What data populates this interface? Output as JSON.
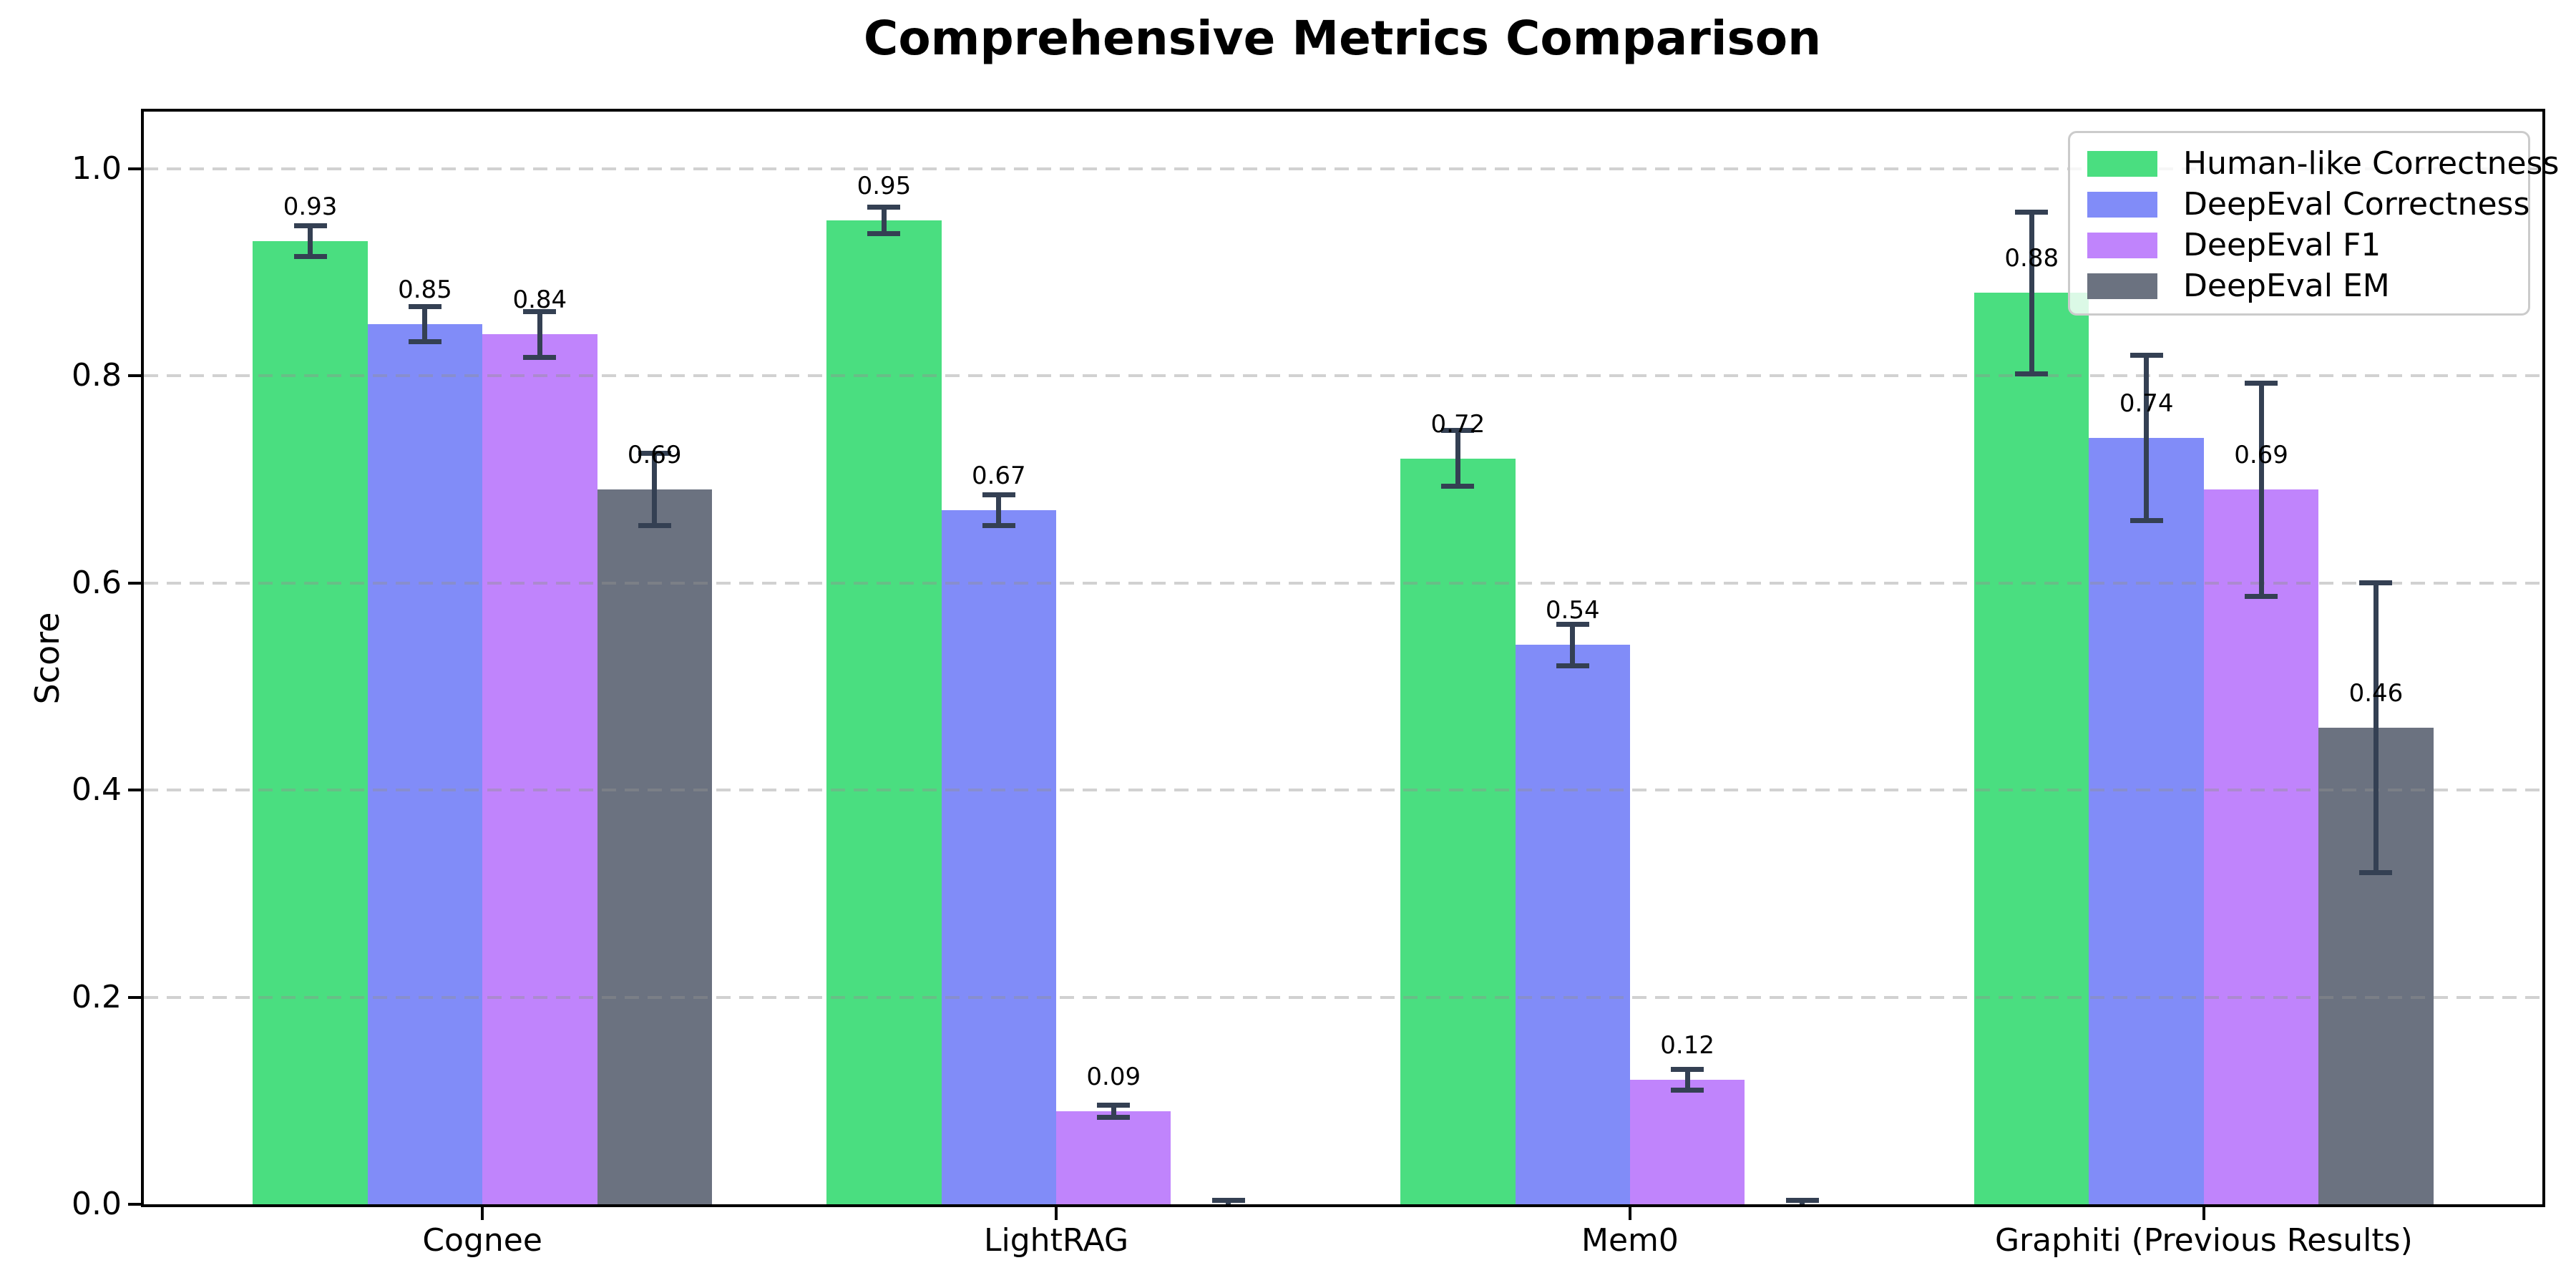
{
  "chart_data": {
    "type": "bar",
    "title": "Comprehensive Metrics Comparison",
    "xlabel": "",
    "ylabel": "Score",
    "categories": [
      "Cognee",
      "LightRAG",
      "Mem0",
      "Graphiti (Previous Results)"
    ],
    "series": [
      {
        "name": "Human-like Correctness",
        "color": "#4ade80",
        "values": [
          0.93,
          0.95,
          0.72,
          0.88
        ],
        "errors": [
          0.015,
          0.013,
          0.027,
          0.078
        ],
        "labels": [
          "0.93",
          "0.95",
          "0.72",
          "0.88"
        ]
      },
      {
        "name": "DeepEval Correctness",
        "color": "#818cf8",
        "values": [
          0.85,
          0.67,
          0.54,
          0.74
        ],
        "errors": [
          0.017,
          0.015,
          0.02,
          0.08
        ],
        "labels": [
          "0.85",
          "0.67",
          "0.54",
          "0.74"
        ]
      },
      {
        "name": "DeepEval F1",
        "color": "#c084fc",
        "values": [
          0.84,
          0.09,
          0.12,
          0.69
        ],
        "errors": [
          0.022,
          0.006,
          0.01,
          0.103
        ],
        "labels": [
          "0.84",
          "0.09",
          "0.12",
          "0.69"
        ]
      },
      {
        "name": "DeepEval EM",
        "color": "#6b7280",
        "values": [
          0.69,
          0.0,
          0.0,
          0.46
        ],
        "errors": [
          0.035,
          0.004,
          0.004,
          0.14
        ],
        "labels": [
          "0.69",
          "",
          "",
          "0.46"
        ]
      }
    ],
    "bar_width": 0.2,
    "ylim": [
      0,
      1.055
    ],
    "xlim": [
      -0.59,
      3.59
    ],
    "yticks": [
      0.0,
      0.2,
      0.4,
      0.6,
      0.8,
      1.0
    ],
    "grid": {
      "axis": "y",
      "style": "dashed",
      "on": true
    },
    "error_color": "#344053",
    "legend_position": "upper right"
  }
}
